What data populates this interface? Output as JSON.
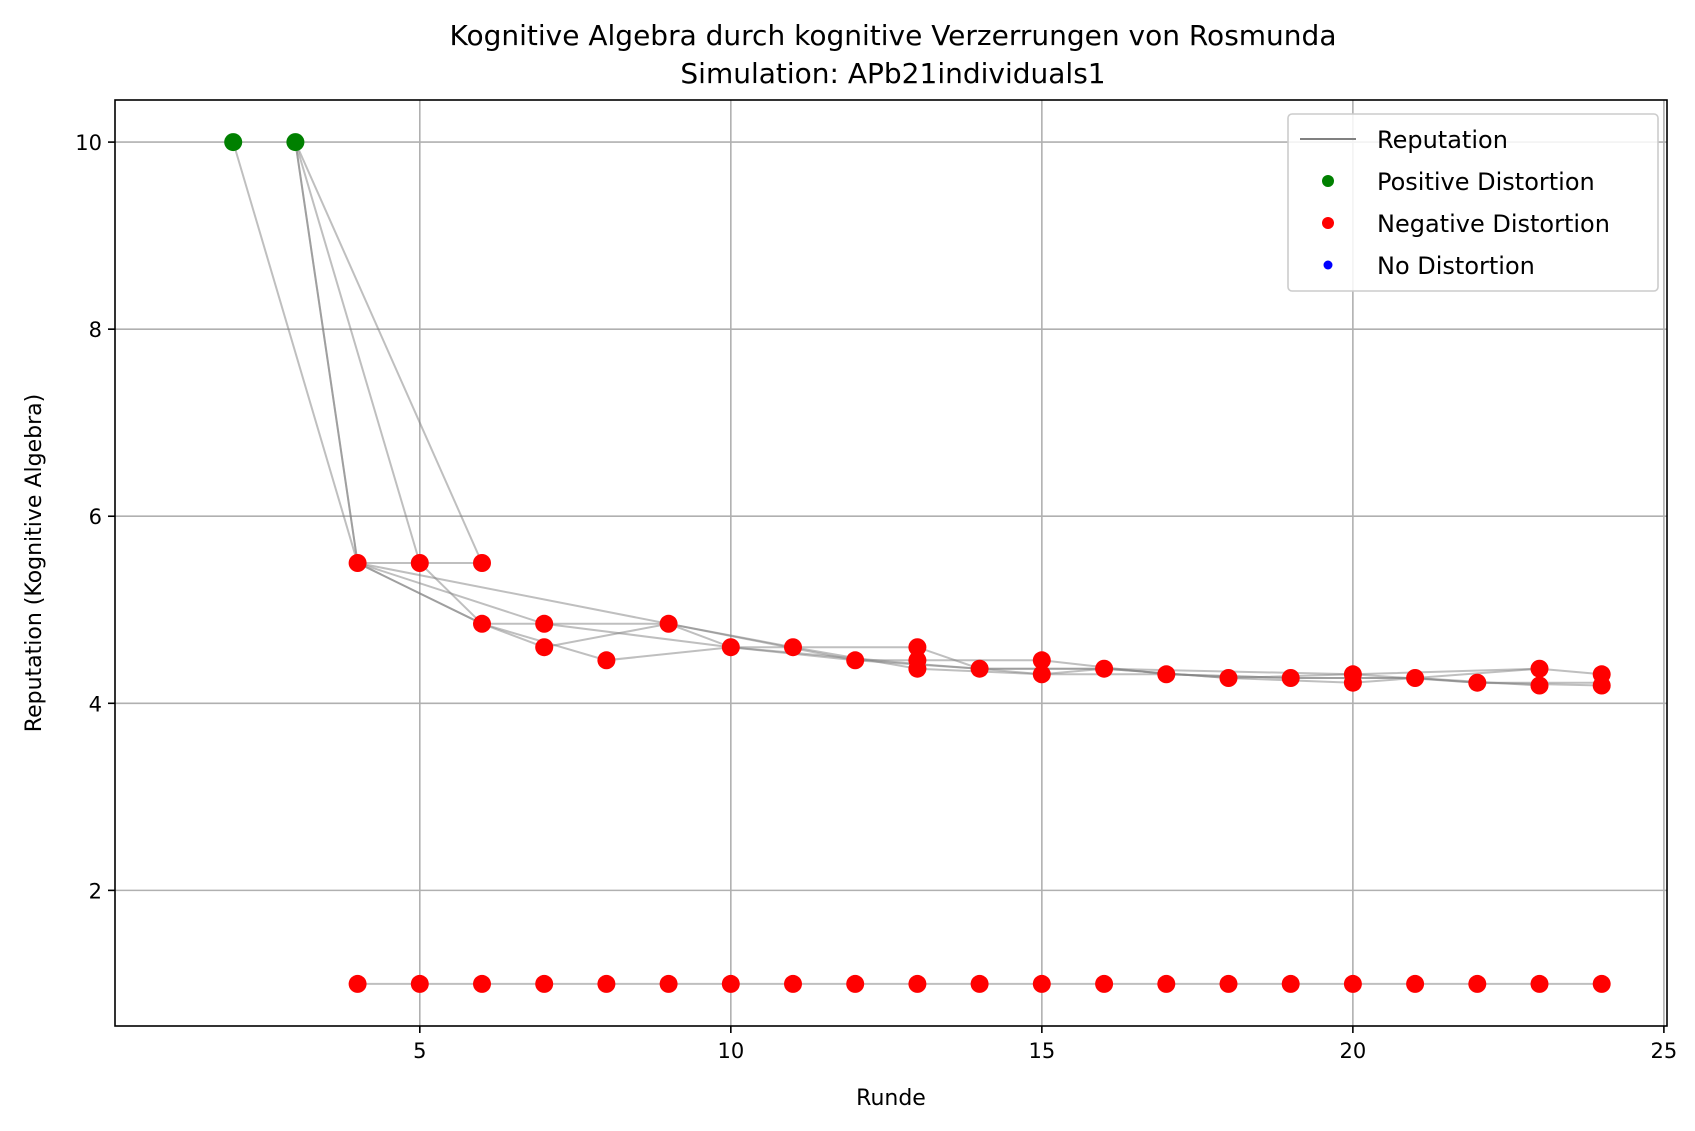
{
  "chart_data": {
    "type": "scatter",
    "title": "Kognitive Algebra durch kognitive Verzerrungen von Rosmunda",
    "subtitle": "Simulation: APb21individuals1",
    "xlabel": "Runde",
    "ylabel": "Reputation (Kognitive Algebra)",
    "xlim": [
      0.1,
      25.05
    ],
    "ylim": [
      0.55,
      10.45
    ],
    "xticks": [
      5,
      10,
      15,
      20,
      25
    ],
    "yticks": [
      2,
      4,
      6,
      8,
      10
    ],
    "grid": true,
    "legend_position": "top-right",
    "legend": [
      {
        "label": "Reputation",
        "kind": "line",
        "color": "#808080"
      },
      {
        "label": "Positive Distortion",
        "kind": "marker",
        "color": "#008000"
      },
      {
        "label": "Negative Distortion",
        "kind": "marker",
        "color": "#ff0000"
      },
      {
        "label": "No Distortion",
        "kind": "marker",
        "color": "#0000ff"
      }
    ],
    "colors": {
      "reputation_line": "#808080",
      "positive": "#008000",
      "negative": "#ff0000",
      "none": "#0000ff"
    },
    "lines": [
      {
        "x": [
          2,
          4,
          6,
          8,
          10,
          12,
          14,
          16,
          18,
          20,
          22,
          24
        ],
        "y": [
          10,
          5.5,
          4.85,
          4.46,
          4.6,
          4.46,
          4.37,
          4.37,
          4.27,
          4.31,
          4.22,
          4.22
        ]
      },
      {
        "x": [
          3,
          4,
          6,
          7,
          9,
          11,
          13,
          15,
          17,
          19,
          21,
          23
        ],
        "y": [
          10,
          5.5,
          4.85,
          4.6,
          4.85,
          4.6,
          4.37,
          4.31,
          4.31,
          4.27,
          4.27,
          4.19
        ]
      },
      {
        "x": [
          3,
          5,
          6,
          9,
          12,
          13,
          15,
          17,
          19,
          21,
          22,
          24
        ],
        "y": [
          10,
          5.5,
          4.85,
          4.85,
          4.46,
          4.46,
          4.46,
          4.31,
          4.27,
          4.27,
          4.22,
          4.19
        ]
      },
      {
        "x": [
          3,
          6,
          4,
          7,
          10,
          11,
          13,
          14,
          16,
          18,
          20,
          23
        ],
        "y": [
          10,
          5.5,
          5.5,
          4.85,
          4.6,
          4.6,
          4.6,
          4.37,
          4.37,
          4.27,
          4.22,
          4.37
        ]
      },
      {
        "x": [
          3,
          4,
          9,
          10,
          13,
          14,
          15,
          16,
          20,
          23,
          24
        ],
        "y": [
          10,
          5.5,
          4.85,
          4.6,
          4.42,
          4.37,
          4.31,
          4.37,
          4.31,
          4.37,
          4.31
        ]
      },
      {
        "x": [
          4,
          5,
          6,
          7,
          8,
          9,
          10,
          11,
          12,
          13,
          14,
          15,
          16,
          17,
          18,
          19,
          20,
          21,
          22,
          23,
          24
        ],
        "y": [
          1,
          1,
          1,
          1,
          1,
          1,
          1,
          1,
          1,
          1,
          1,
          1,
          1,
          1,
          1,
          1,
          1,
          1,
          1,
          1,
          1
        ]
      }
    ],
    "positive_points": [
      {
        "x": 2,
        "y": 10
      },
      {
        "x": 3,
        "y": 10
      }
    ],
    "negative_points": [
      {
        "x": 4,
        "y": 5.5
      },
      {
        "x": 5,
        "y": 5.5
      },
      {
        "x": 6,
        "y": 5.5
      },
      {
        "x": 6,
        "y": 4.85
      },
      {
        "x": 7,
        "y": 4.85
      },
      {
        "x": 7,
        "y": 4.6
      },
      {
        "x": 8,
        "y": 4.46
      },
      {
        "x": 9,
        "y": 4.85
      },
      {
        "x": 10,
        "y": 4.6
      },
      {
        "x": 11,
        "y": 4.6
      },
      {
        "x": 12,
        "y": 4.46
      },
      {
        "x": 13,
        "y": 4.6
      },
      {
        "x": 13,
        "y": 4.46
      },
      {
        "x": 13,
        "y": 4.37
      },
      {
        "x": 14,
        "y": 4.37
      },
      {
        "x": 15,
        "y": 4.46
      },
      {
        "x": 15,
        "y": 4.31
      },
      {
        "x": 16,
        "y": 4.37
      },
      {
        "x": 17,
        "y": 4.31
      },
      {
        "x": 18,
        "y": 4.27
      },
      {
        "x": 19,
        "y": 4.27
      },
      {
        "x": 20,
        "y": 4.31
      },
      {
        "x": 20,
        "y": 4.22
      },
      {
        "x": 21,
        "y": 4.27
      },
      {
        "x": 22,
        "y": 4.22
      },
      {
        "x": 23,
        "y": 4.37
      },
      {
        "x": 23,
        "y": 4.19
      },
      {
        "x": 24,
        "y": 4.31
      },
      {
        "x": 24,
        "y": 4.19
      },
      {
        "x": 4,
        "y": 1
      },
      {
        "x": 5,
        "y": 1
      },
      {
        "x": 6,
        "y": 1
      },
      {
        "x": 7,
        "y": 1
      },
      {
        "x": 8,
        "y": 1
      },
      {
        "x": 9,
        "y": 1
      },
      {
        "x": 10,
        "y": 1
      },
      {
        "x": 11,
        "y": 1
      },
      {
        "x": 12,
        "y": 1
      },
      {
        "x": 13,
        "y": 1
      },
      {
        "x": 14,
        "y": 1
      },
      {
        "x": 15,
        "y": 1
      },
      {
        "x": 16,
        "y": 1
      },
      {
        "x": 17,
        "y": 1
      },
      {
        "x": 18,
        "y": 1
      },
      {
        "x": 19,
        "y": 1
      },
      {
        "x": 20,
        "y": 1
      },
      {
        "x": 21,
        "y": 1
      },
      {
        "x": 22,
        "y": 1
      },
      {
        "x": 23,
        "y": 1
      },
      {
        "x": 24,
        "y": 1
      }
    ],
    "none_points": []
  }
}
